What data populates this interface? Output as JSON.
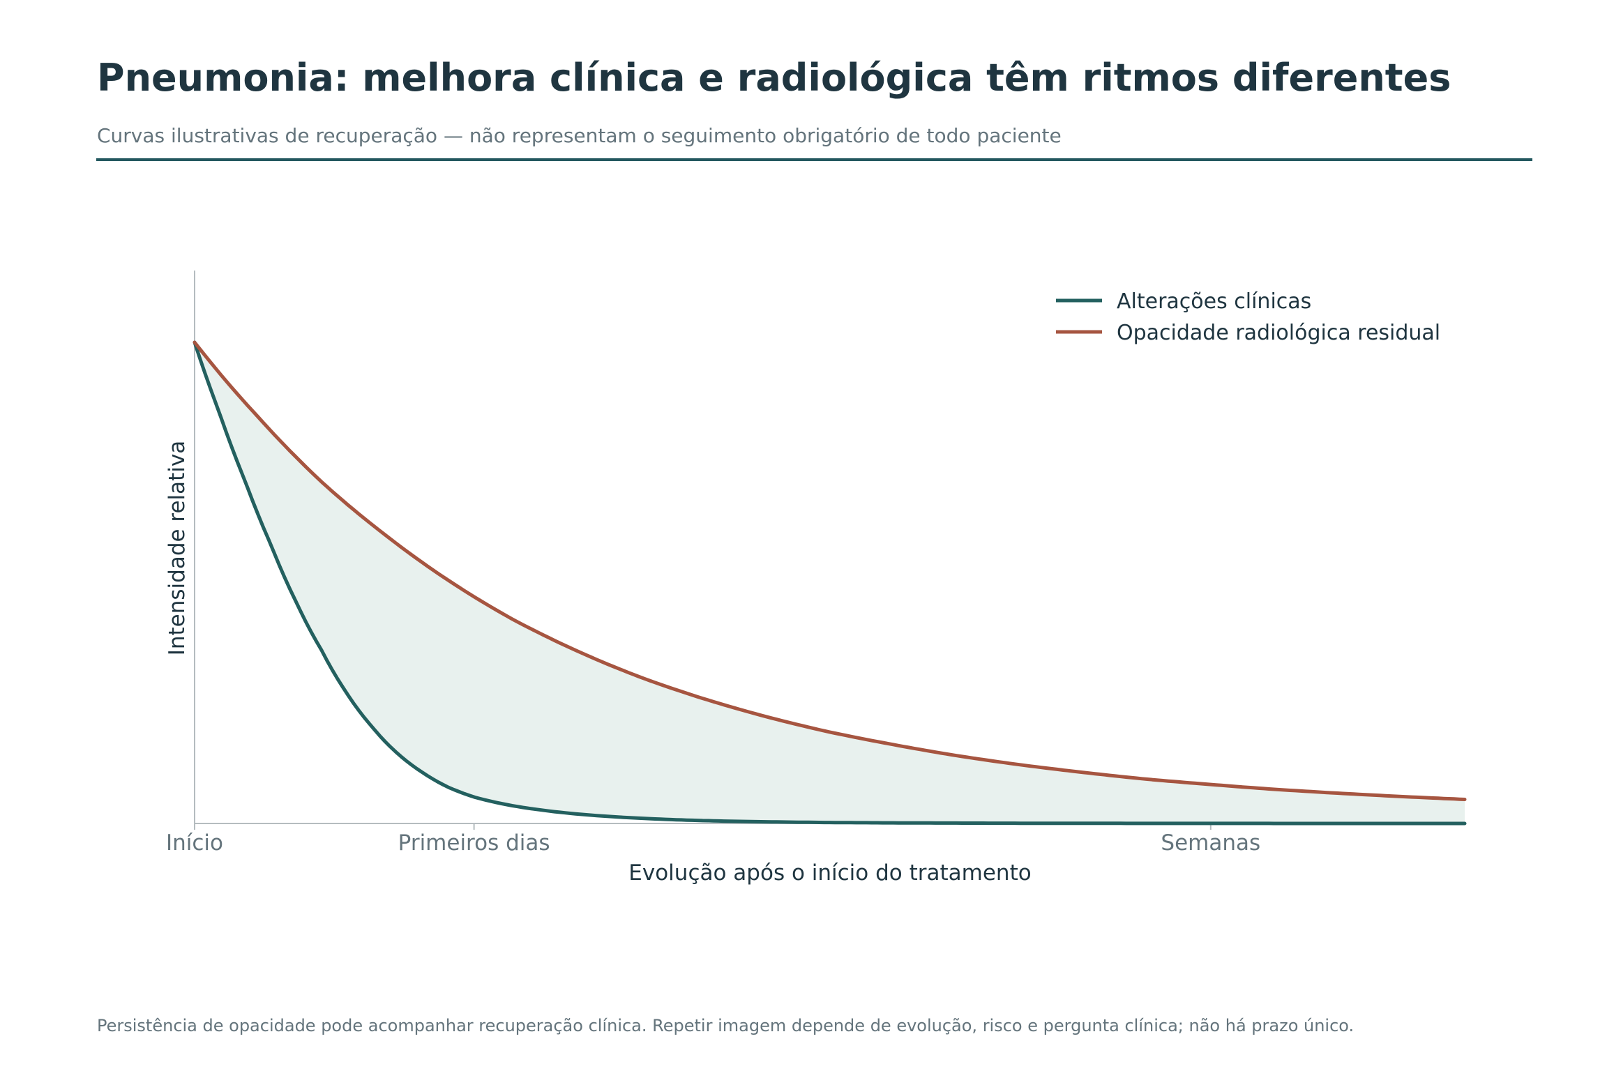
{
  "header": {
    "title": "Pneumonia: melhora clínica e radiológica têm ritmos diferentes",
    "subtitle": "Curvas ilustrativas de recuperação — não representam o seguimento obrigatório de todo paciente"
  },
  "footnote": "Persistência de opacidade pode acompanhar recuperação clínica. Repetir imagem depende de evolução, risco e pergunta clínica; não há prazo único.",
  "colors": {
    "clinical": "#23605f",
    "radiological": "#a65540",
    "fill": "#e8f1ee",
    "text": "#1f3540",
    "muted": "#64747c",
    "axis": "#b5bcbf"
  },
  "chart_data": {
    "type": "line",
    "title": "",
    "xlabel": "Evolução após o início do tratamento",
    "ylabel": "Intensidade relativa",
    "xlim": [
      0,
      1
    ],
    "ylim": [
      0,
      1.15
    ],
    "x_ticks": [
      {
        "x": 0,
        "label": "Início"
      },
      {
        "x": 0.22,
        "label": "Primeiros dias"
      },
      {
        "x": 0.8,
        "label": "Semanas"
      }
    ],
    "y_ticks": [],
    "grid": false,
    "legend_position": "top-right",
    "fill_between_series": true,
    "series": [
      {
        "name": "Alterações clínicas",
        "color": "#23605f",
        "x": [
          0,
          0.02,
          0.04,
          0.06,
          0.08,
          0.1,
          0.12,
          0.14,
          0.16,
          0.18,
          0.2,
          0.22,
          0.25,
          0.3,
          0.35,
          0.4,
          0.5,
          0.6,
          0.7,
          0.8,
          0.9,
          1.0
        ],
        "y": [
          1.0,
          0.85,
          0.71,
          0.58,
          0.46,
          0.36,
          0.27,
          0.2,
          0.145,
          0.105,
          0.075,
          0.055,
          0.037,
          0.02,
          0.011,
          0.006,
          0.002,
          0.0008,
          0.0003,
          0.0001,
          5e-05,
          2e-05
        ]
      },
      {
        "name": "Opacidade radiológica residual",
        "color": "#a65540",
        "x": [
          0,
          0.05,
          0.1,
          0.15,
          0.2,
          0.25,
          0.3,
          0.35,
          0.4,
          0.45,
          0.5,
          0.55,
          0.6,
          0.65,
          0.7,
          0.75,
          0.8,
          0.85,
          0.9,
          0.95,
          1.0
        ],
        "y": [
          1.0,
          0.845,
          0.71,
          0.6,
          0.505,
          0.425,
          0.36,
          0.305,
          0.26,
          0.222,
          0.19,
          0.164,
          0.141,
          0.122,
          0.106,
          0.092,
          0.081,
          0.071,
          0.063,
          0.056,
          0.05
        ]
      }
    ]
  }
}
